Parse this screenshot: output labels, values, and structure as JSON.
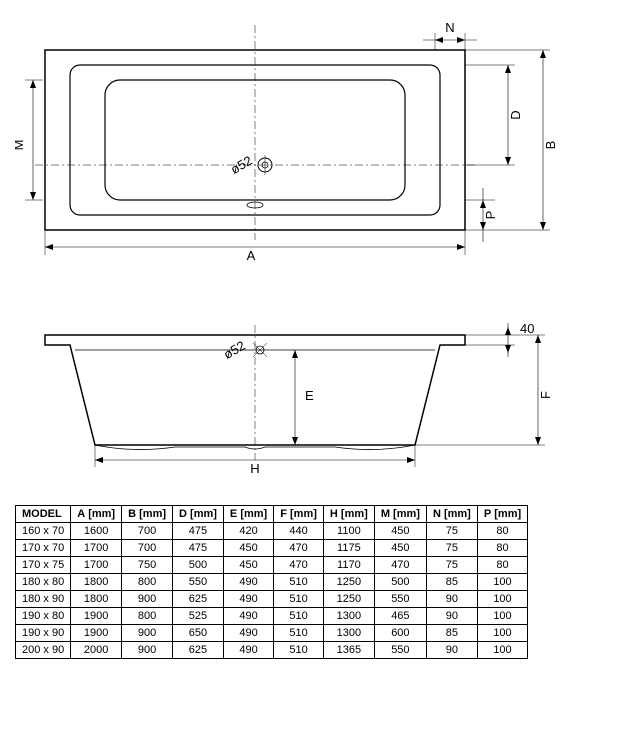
{
  "diagram": {
    "type": "engineering-drawing",
    "product": "bathtub",
    "stroke_color": "#000000",
    "stroke_width": 1.2,
    "thin_stroke": 0.6,
    "background": "#ffffff",
    "font_family": "Arial",
    "label_fontsize": 13
  },
  "top_view": {
    "dimensions": {
      "A": "A",
      "B": "B",
      "D": "D",
      "M": "M",
      "N": "N",
      "P": "P"
    },
    "drain_label": "ø52"
  },
  "side_view": {
    "dimensions": {
      "E": "E",
      "F": "F",
      "H": "H",
      "rim_height": "40"
    },
    "overflow_label": "ø52"
  },
  "table": {
    "columns": [
      "MODEL",
      "A [mm]",
      "B [mm]",
      "D [mm]",
      "E [mm]",
      "F [mm]",
      "H [mm]",
      "M [mm]",
      "N [mm]",
      "P [mm]"
    ],
    "rows": [
      [
        "160 x 70",
        "1600",
        "700",
        "475",
        "420",
        "440",
        "1100",
        "450",
        "75",
        "80"
      ],
      [
        "170 x 70",
        "1700",
        "700",
        "475",
        "450",
        "470",
        "1175",
        "450",
        "75",
        "80"
      ],
      [
        "170 x 75",
        "1700",
        "750",
        "500",
        "450",
        "470",
        "1170",
        "470",
        "75",
        "80"
      ],
      [
        "180 x 80",
        "1800",
        "800",
        "550",
        "490",
        "510",
        "1250",
        "500",
        "85",
        "100"
      ],
      [
        "180 x 90",
        "1800",
        "900",
        "625",
        "490",
        "510",
        "1250",
        "550",
        "90",
        "100"
      ],
      [
        "190 x 80",
        "1900",
        "800",
        "525",
        "490",
        "510",
        "1300",
        "465",
        "90",
        "100"
      ],
      [
        "190 x 90",
        "1900",
        "900",
        "650",
        "490",
        "510",
        "1300",
        "600",
        "85",
        "100"
      ],
      [
        "200 x 90",
        "2000",
        "900",
        "625",
        "490",
        "510",
        "1365",
        "550",
        "90",
        "100"
      ]
    ]
  }
}
